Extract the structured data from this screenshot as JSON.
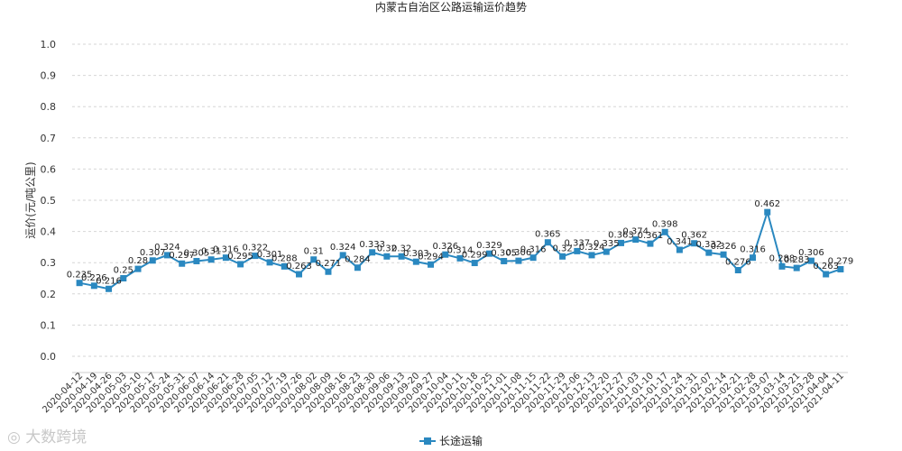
{
  "chart_data": {
    "type": "line",
    "title": "内蒙古自治区公路运输运价趋势",
    "ylabel": "运价(元/吨公里)",
    "ylim": [
      0.0,
      1.0
    ],
    "yticks": [
      "0.0",
      "0.1",
      "0.2",
      "0.3",
      "0.4",
      "0.5",
      "0.6",
      "0.7",
      "0.8",
      "0.9",
      "1.0"
    ],
    "grid": true,
    "legend_position": "bottom-center",
    "categories": [
      "2020-04-12",
      "2020-04-19",
      "2020-04-26",
      "2020-05-03",
      "2020-05-10",
      "2020-05-17",
      "2020-05-24",
      "2020-05-31",
      "2020-06-07",
      "2020-06-14",
      "2020-06-21",
      "2020-06-28",
      "2020-07-05",
      "2020-07-12",
      "2020-07-19",
      "2020-07-26",
      "2020-08-02",
      "2020-08-09",
      "2020-08-16",
      "2020-08-23",
      "2020-08-30",
      "2020-09-06",
      "2020-09-13",
      "2020-09-20",
      "2020-09-27",
      "2020-10-04",
      "2020-10-11",
      "2020-10-18",
      "2020-10-25",
      "2020-11-01",
      "2020-11-08",
      "2020-11-15",
      "2020-11-22",
      "2020-11-29",
      "2020-12-06",
      "2020-12-13",
      "2020-12-20",
      "2020-12-27",
      "2021-01-03",
      "2021-01-10",
      "2021-01-17",
      "2021-01-24",
      "2021-01-31",
      "2021-02-07",
      "2021-02-14",
      "2021-02-21",
      "2021-02-28",
      "2021-03-07",
      "2021-03-14",
      "2021-03-21",
      "2021-03-28",
      "2021-04-04",
      "2021-04-11"
    ],
    "series": [
      {
        "name": "长途运输",
        "color": "#2a88c0",
        "values": [
          0.235,
          0.226,
          0.216,
          0.25,
          0.28,
          0.307,
          0.324,
          0.297,
          0.305,
          0.31,
          0.316,
          0.295,
          0.322,
          0.301,
          0.288,
          0.263,
          0.31,
          0.271,
          0.324,
          0.284,
          0.333,
          0.32,
          0.32,
          0.303,
          0.294,
          0.326,
          0.314,
          0.299,
          0.329,
          0.305,
          0.306,
          0.316,
          0.365,
          0.32,
          0.337,
          0.324,
          0.335,
          0.363,
          0.374,
          0.361,
          0.398,
          0.341,
          0.362,
          0.332,
          0.326,
          0.276,
          0.316,
          0.462,
          0.288,
          0.283,
          0.306,
          0.263,
          0.279
        ]
      }
    ],
    "data_labels": [
      "0.235",
      "0.226",
      "0.216",
      "0.25",
      "0.28",
      "0.307",
      "0.324",
      "0.297",
      "0.305",
      "0.31",
      "0.316",
      "0.295",
      "0.322",
      "0.301",
      "0.288",
      "0.263",
      "0.31",
      "0.271",
      "0.324",
      "0.284",
      "0.333",
      "0.32",
      "0.32",
      "0.303",
      "0.294",
      "0.326",
      "0.314",
      "0.299",
      "0.329",
      "0.305",
      "0.306",
      "0.316",
      "0.365",
      "0.32",
      "0.337",
      "0.324",
      "0.335",
      "0.363",
      "0.374",
      "0.361",
      "0.398",
      "0.341",
      "0.362",
      "0.332",
      "0.326",
      "0.276",
      "0.316",
      "0.462",
      "0.288",
      "0.283",
      "0.306",
      "0.263",
      "0.279"
    ]
  },
  "watermark": "大数跨境"
}
